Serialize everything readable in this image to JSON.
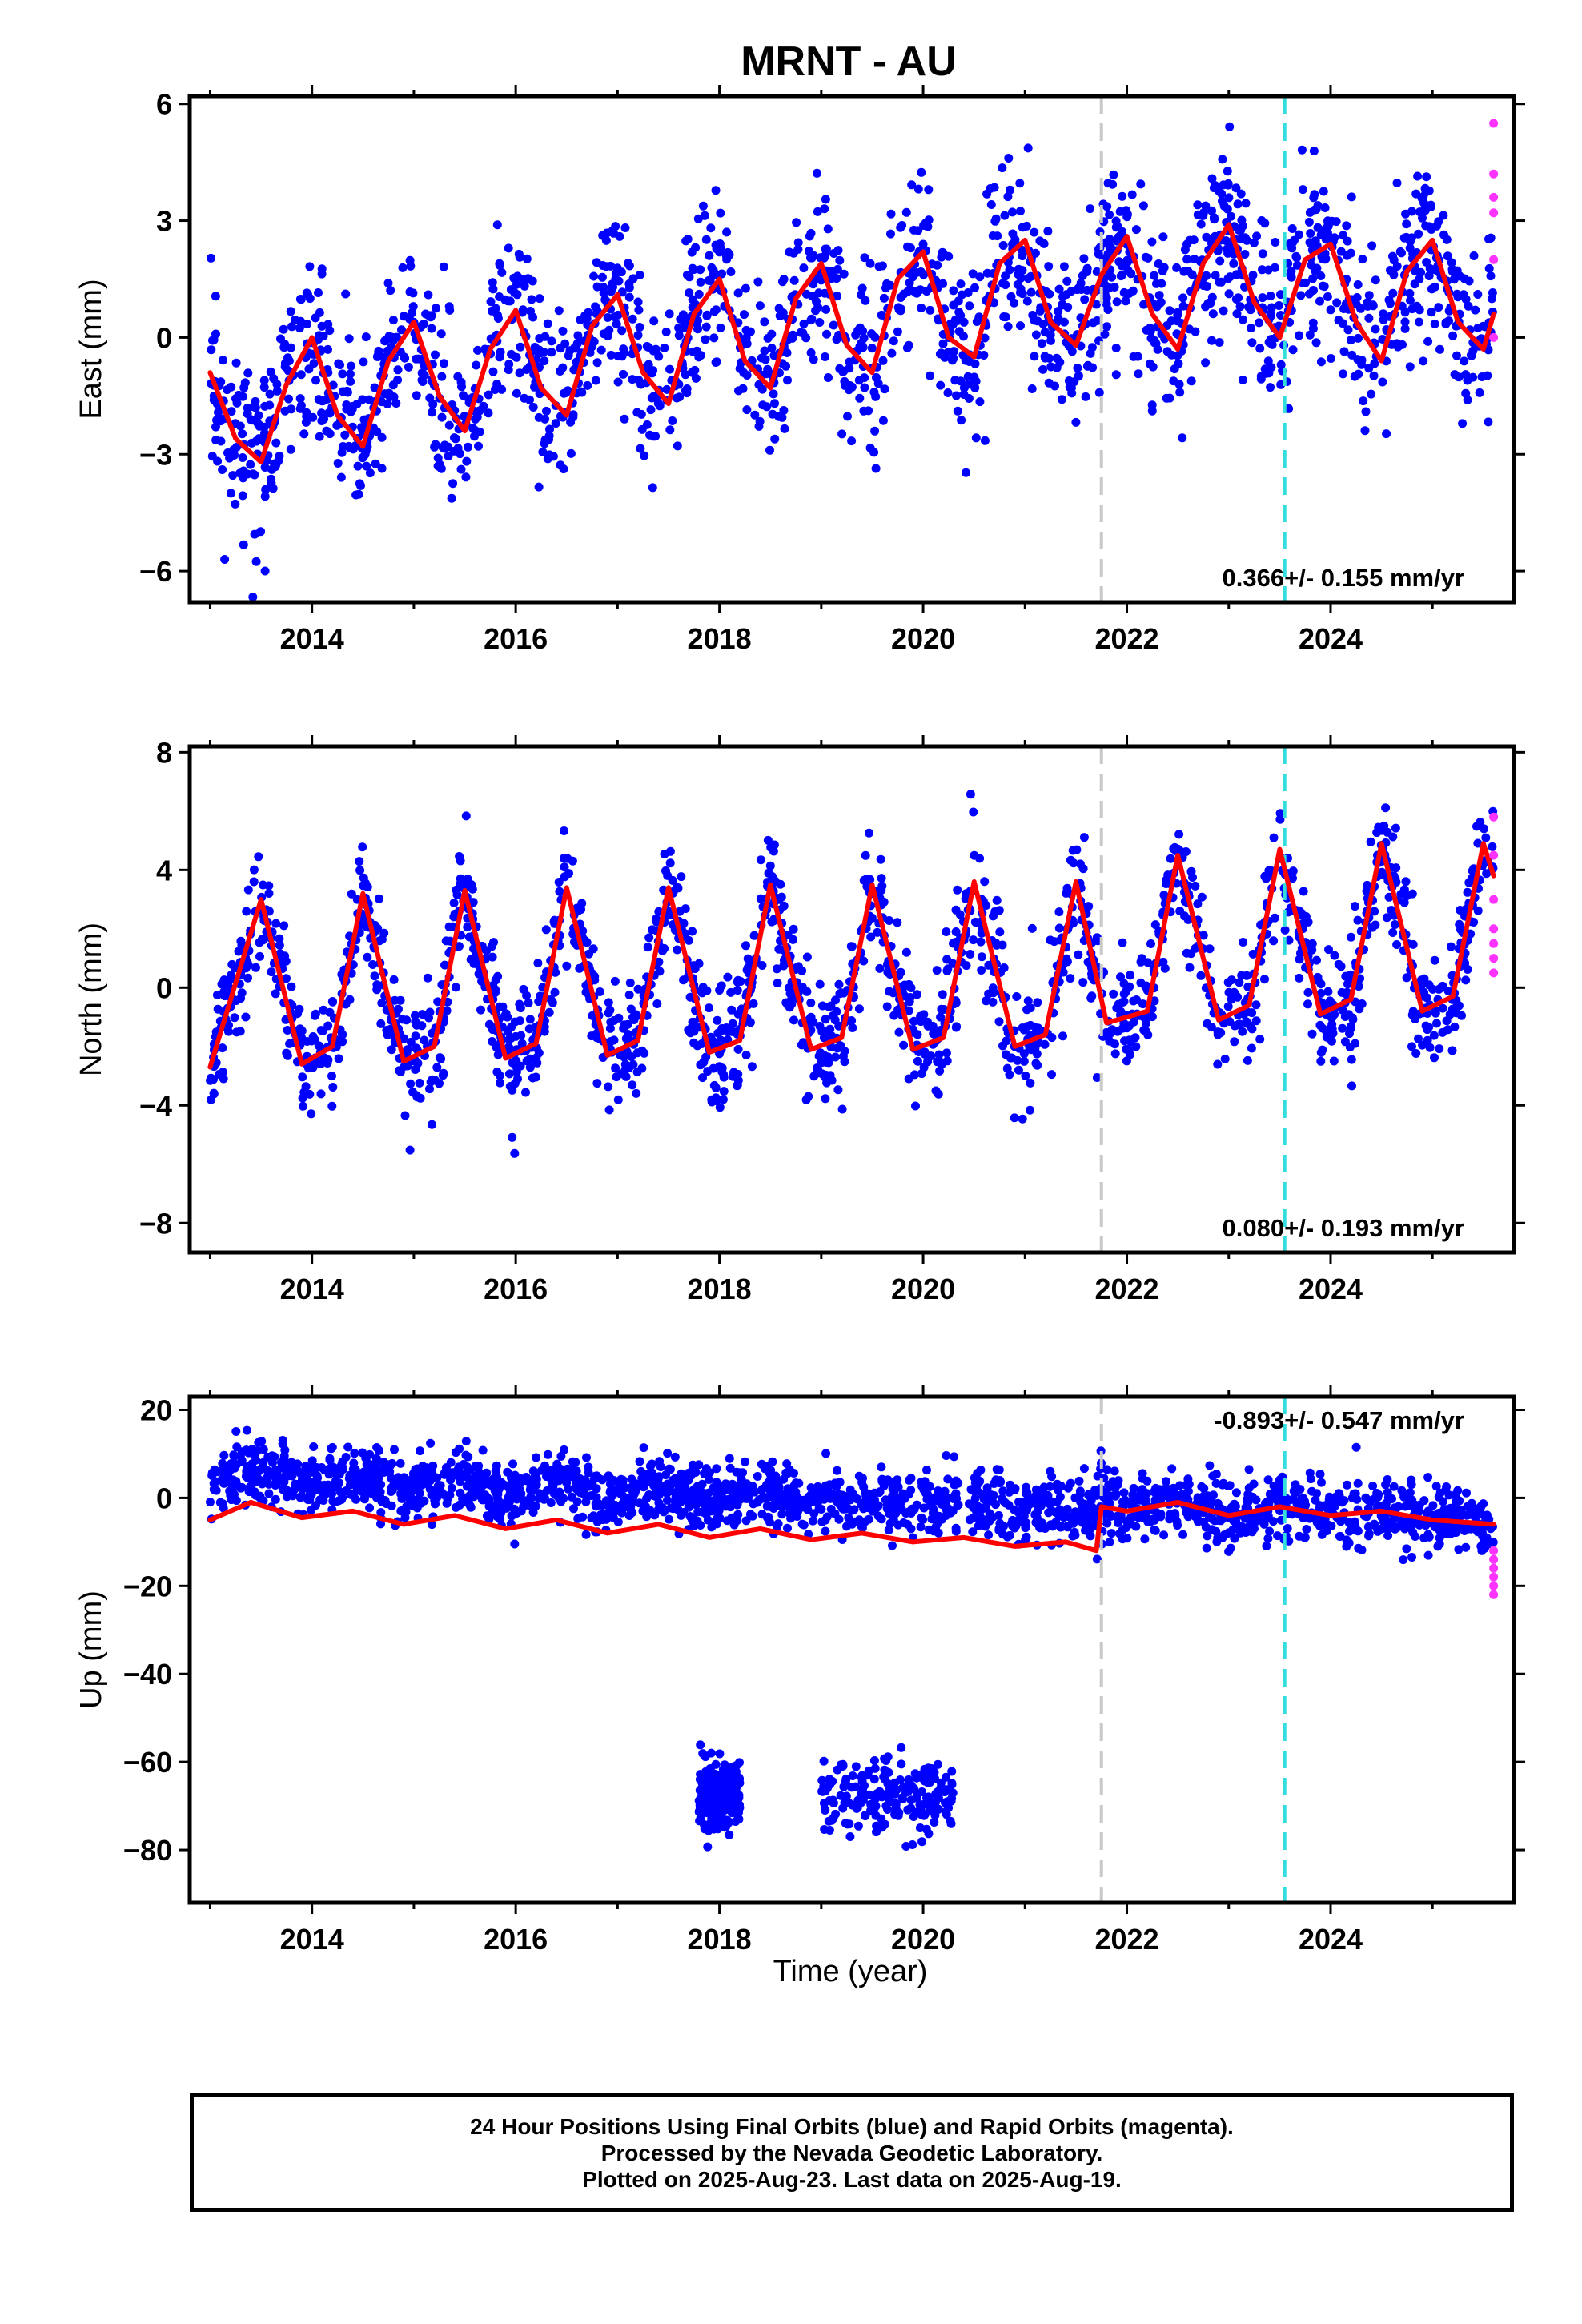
{
  "page_title": "MRNT - AU",
  "x_axis_label": "Time (year)",
  "colors": {
    "final_orbits": "#0000ff",
    "rapid_orbits": "#ff33ff",
    "model": "#ff0000",
    "antenna_change": "#c8c8c8",
    "equipment_change": "#33dddd"
  },
  "footer": {
    "line1": "24 Hour Positions Using Final Orbits (blue) and Rapid Orbits (magenta).",
    "line2": "Processed by the Nevada Geodetic Laboratory.",
    "line3": "Plotted on 2025-Aug-23. Last data on 2025-Aug-19."
  },
  "chart_data": [
    {
      "type": "scatter",
      "ylabel": "East (mm)",
      "rate_label": "0.366+/- 0.155 mm/yr",
      "rate_placement": "bottom-right",
      "xlim": [
        2012.8,
        2025.8
      ],
      "ylim": [
        -6.8,
        6.2
      ],
      "x_ticks": [
        2014,
        2016,
        2018,
        2020,
        2022,
        2024
      ],
      "y_ticks": [
        -6,
        -3,
        0,
        3,
        6
      ],
      "y_tick_labels": [
        "−6",
        "−3",
        "0",
        "3",
        "6"
      ],
      "grid": false,
      "vertical_lines": [
        {
          "x": 2021.75,
          "color": "#c8c8c8",
          "style": "dashed"
        },
        {
          "x": 2023.55,
          "color": "#33dddd",
          "style": "dashed"
        }
      ],
      "series": [
        {
          "kind": "model",
          "color": "#ff0000",
          "x": [
            2013.0,
            2013.25,
            2013.5,
            2013.75,
            2014.0,
            2014.25,
            2014.5,
            2014.75,
            2015.0,
            2015.25,
            2015.5,
            2015.75,
            2016.0,
            2016.25,
            2016.5,
            2016.75,
            2017.0,
            2017.25,
            2017.5,
            2017.75,
            2018.0,
            2018.25,
            2018.5,
            2018.75,
            2019.0,
            2019.25,
            2019.5,
            2019.75,
            2020.0,
            2020.25,
            2020.5,
            2020.75,
            2021.0,
            2021.25,
            2021.5,
            2021.75,
            2022.0,
            2022.25,
            2022.5,
            2022.75,
            2023.0,
            2023.25,
            2023.5,
            2023.75,
            2024.0,
            2024.25,
            2024.5,
            2024.75,
            2025.0,
            2025.25,
            2025.5,
            2025.6
          ],
          "y": [
            -0.9,
            -2.6,
            -3.2,
            -1.2,
            0.0,
            -2.0,
            -2.8,
            -0.6,
            0.4,
            -1.5,
            -2.4,
            -0.3,
            0.7,
            -1.3,
            -2.0,
            0.3,
            1.1,
            -0.9,
            -1.7,
            0.6,
            1.5,
            -0.6,
            -1.3,
            1.0,
            1.9,
            -0.2,
            -0.9,
            1.5,
            2.2,
            0.0,
            -0.5,
            1.9,
            2.5,
            0.4,
            -0.2,
            1.6,
            2.6,
            0.6,
            -0.3,
            1.9,
            2.9,
            0.9,
            0.0,
            2.0,
            2.4,
            0.4,
            -0.6,
            1.7,
            2.5,
            0.4,
            -0.3,
            0.6
          ]
        },
        {
          "kind": "final",
          "color": "#0000ff",
          "noise_sd": 1.1,
          "count": 1900
        },
        {
          "kind": "rapid",
          "color": "#ff33ff",
          "x": [
            2025.6,
            2025.6,
            2025.6,
            2025.6,
            2025.6,
            2025.6
          ],
          "y": [
            5.5,
            4.2,
            3.6,
            3.2,
            2.0,
            0.0
          ]
        }
      ]
    },
    {
      "type": "scatter",
      "ylabel": "North (mm)",
      "rate_label": "0.080+/- 0.193 mm/yr",
      "rate_placement": "bottom-right",
      "xlim": [
        2012.8,
        2025.8
      ],
      "ylim": [
        -9.0,
        8.2
      ],
      "x_ticks": [
        2014,
        2016,
        2018,
        2020,
        2022,
        2024
      ],
      "y_ticks": [
        -8,
        -4,
        0,
        4,
        8
      ],
      "y_tick_labels": [
        "−8",
        "−4",
        "0",
        "4",
        "8"
      ],
      "grid": false,
      "vertical_lines": [
        {
          "x": 2021.75,
          "color": "#c8c8c8",
          "style": "dashed"
        },
        {
          "x": 2023.55,
          "color": "#33dddd",
          "style": "dashed"
        }
      ],
      "series": [
        {
          "kind": "model",
          "color": "#ff0000",
          "x": [
            2013.0,
            2013.5,
            2013.9,
            2014.2,
            2014.5,
            2014.9,
            2015.2,
            2015.5,
            2015.9,
            2016.2,
            2016.5,
            2016.9,
            2017.2,
            2017.5,
            2017.9,
            2018.2,
            2018.5,
            2018.9,
            2019.2,
            2019.5,
            2019.9,
            2020.2,
            2020.5,
            2020.9,
            2021.2,
            2021.5,
            2021.8,
            2022.2,
            2022.5,
            2022.9,
            2023.2,
            2023.5,
            2023.9,
            2024.2,
            2024.5,
            2024.9,
            2025.2,
            2025.5,
            2025.6
          ],
          "y": [
            -2.7,
            3.0,
            -2.6,
            -2.0,
            3.2,
            -2.5,
            -2.0,
            3.3,
            -2.4,
            -1.9,
            3.4,
            -2.3,
            -1.8,
            3.4,
            -2.2,
            -1.8,
            3.5,
            -2.1,
            -1.7,
            3.5,
            -2.1,
            -1.7,
            3.6,
            -2.0,
            -1.6,
            3.6,
            -1.2,
            -0.8,
            4.5,
            -1.1,
            -0.6,
            4.7,
            -0.9,
            -0.4,
            4.9,
            -0.8,
            -0.3,
            4.9,
            3.8
          ]
        },
        {
          "kind": "final",
          "color": "#0000ff",
          "noise_sd": 1.0,
          "count": 1900
        },
        {
          "kind": "rapid",
          "color": "#ff33ff",
          "x": [
            2025.6,
            2025.6,
            2025.6,
            2025.6,
            2025.6,
            2025.6,
            2025.6
          ],
          "y": [
            5.8,
            4.5,
            3.0,
            2.0,
            1.5,
            1.0,
            0.5
          ]
        }
      ]
    },
    {
      "type": "scatter",
      "ylabel": "Up (mm)",
      "rate_label": "-0.893+/- 0.547 mm/yr",
      "rate_placement": "top-right",
      "xlim": [
        2012.8,
        2025.8
      ],
      "ylim": [
        -92,
        23
      ],
      "x_ticks": [
        2014,
        2016,
        2018,
        2020,
        2022,
        2024
      ],
      "y_ticks": [
        -80,
        -60,
        -40,
        -20,
        0,
        20
      ],
      "y_tick_labels": [
        "−80",
        "−60",
        "−40",
        "−20",
        "0",
        "20"
      ],
      "grid": false,
      "vertical_lines": [
        {
          "x": 2021.75,
          "color": "#c8c8c8",
          "style": "dashed"
        },
        {
          "x": 2023.55,
          "color": "#33dddd",
          "style": "dashed"
        }
      ],
      "series": [
        {
          "kind": "model",
          "color": "#ff0000",
          "x": [
            2013.0,
            2013.4,
            2013.9,
            2014.4,
            2014.9,
            2015.4,
            2015.9,
            2016.4,
            2016.9,
            2017.4,
            2017.9,
            2018.4,
            2018.9,
            2019.4,
            2019.9,
            2020.4,
            2020.9,
            2021.4,
            2021.7,
            2021.75,
            2022.0,
            2022.5,
            2023.0,
            2023.5,
            2024.0,
            2024.5,
            2025.0,
            2025.6
          ],
          "y": [
            -5,
            -1,
            -4.5,
            -3,
            -6,
            -4,
            -7,
            -5,
            -8,
            -6,
            -9,
            -7,
            -9.5,
            -8,
            -10,
            -9,
            -11,
            -10,
            -12,
            -2,
            -3,
            -1,
            -4,
            -2,
            -4,
            -3,
            -5,
            -6
          ]
        },
        {
          "kind": "final",
          "color": "#0000ff",
          "noise_sd": 3.5,
          "count": 2200
        },
        {
          "kind": "outlier_cluster",
          "color": "#0000ff",
          "x_ranges": [
            [
              2017.8,
              2018.2
            ],
            [
              2019.0,
              2020.3
            ]
          ],
          "y_mean": -68,
          "noise_sd": 4,
          "count": 420
        },
        {
          "kind": "rapid",
          "color": "#ff33ff",
          "x": [
            2025.6,
            2025.6,
            2025.6,
            2025.6,
            2025.6,
            2025.6
          ],
          "y": [
            -12,
            -14,
            -16,
            -18,
            -20,
            -22
          ]
        }
      ]
    }
  ]
}
